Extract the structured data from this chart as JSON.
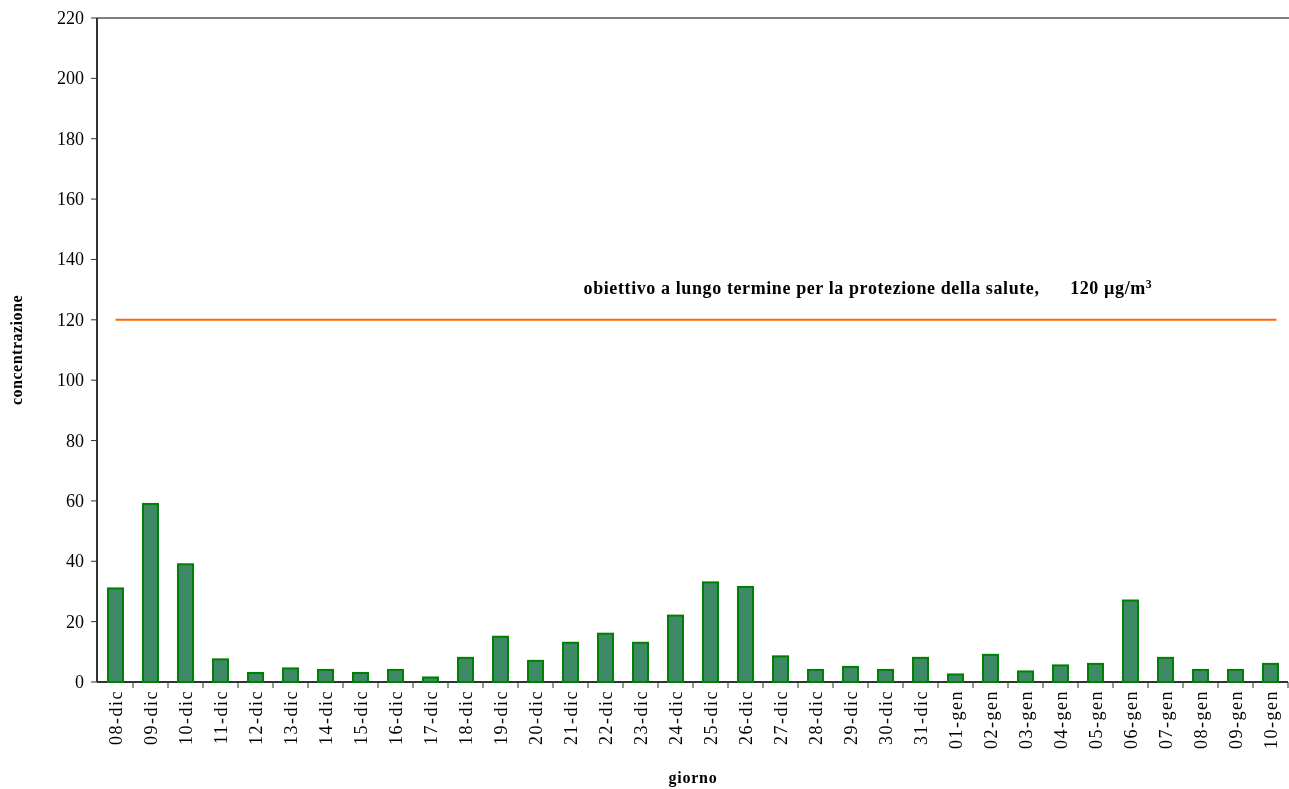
{
  "chart_data": {
    "type": "bar",
    "xlabel": "giorno",
    "ylabel": "concentrazione",
    "categories": [
      "08-dic",
      "09-dic",
      "10-dic",
      "11-dic",
      "12-dic",
      "13-dic",
      "14-dic",
      "15-dic",
      "16-dic",
      "17-dic",
      "18-dic",
      "19-dic",
      "20-dic",
      "21-dic",
      "22-dic",
      "23-dic",
      "24-dic",
      "25-dic",
      "26-dic",
      "27-dic",
      "28-dic",
      "29-dic",
      "30-dic",
      "31-dic",
      "01-gen",
      "02-gen",
      "03-gen",
      "04-gen",
      "05-gen",
      "06-gen",
      "07-gen",
      "08-gen",
      "09-gen",
      "10-gen"
    ],
    "values": [
      31,
      59,
      39,
      7.5,
      3,
      4.5,
      4,
      3,
      4,
      1.5,
      8,
      15,
      7,
      13,
      16,
      13,
      22,
      33,
      31.5,
      8.5,
      4,
      5,
      4,
      8,
      2.5,
      9,
      3.5,
      5.5,
      6,
      27,
      8,
      4,
      4,
      6
    ],
    "color": "#3f8a66",
    "ylim": [
      0,
      220
    ],
    "yticks": [
      0,
      20,
      40,
      60,
      80,
      100,
      120,
      140,
      160,
      180,
      200,
      220
    ],
    "ref_lines": [
      {
        "axis": "y",
        "value": 120,
        "label": "obiettivo a lungo termine per la protezione della salute,      120 µg/m$^{3}$",
        "color": "#ff6600"
      }
    ]
  }
}
